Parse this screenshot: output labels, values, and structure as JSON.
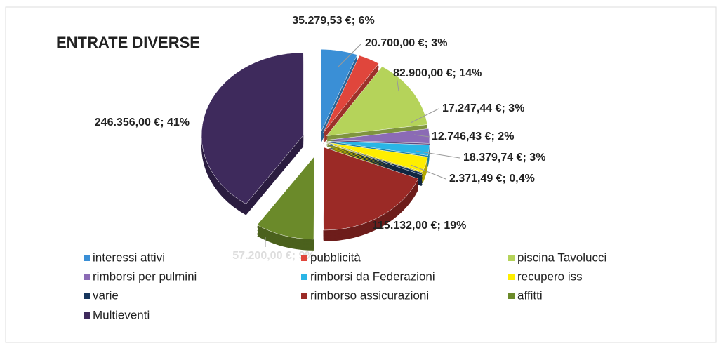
{
  "chart_data": {
    "type": "pie",
    "title": "ENTRATE DIVERSE",
    "categories": [
      "interessi attivi",
      "pubblicità",
      "piscina Tavolucci",
      "rimborsi per pulmini",
      "rimborsi da Federazioni",
      "recupero iss",
      "varie",
      "rimborso assicurazioni",
      "affitti",
      "Multieventi"
    ],
    "values": [
      35279.53,
      20700.0,
      82900.0,
      17247.44,
      12746.43,
      18379.74,
      2371.49,
      115132.0,
      57200.0,
      246356.0
    ],
    "value_labels": [
      "35.279,53 €; 6%",
      "20.700,00 €; 3%",
      "82.900,00 €; 14%",
      "17.247,44 €; 3%",
      "12.746,43 €; 2%",
      "18.379,74 €; 3%",
      "2.371,49 €; 0,4%",
      "115.132,00 €; 19%",
      "57.200,00 €; 9%",
      "246.356,00 €; 41%"
    ],
    "colors": [
      "#3a8fd6",
      "#e0463c",
      "#b5d35a",
      "#8b6bb5",
      "#2ab5e6",
      "#ffee00",
      "#17365d",
      "#9b2a26",
      "#6b8a2a",
      "#3e2a5c"
    ],
    "legend": "bottom"
  }
}
